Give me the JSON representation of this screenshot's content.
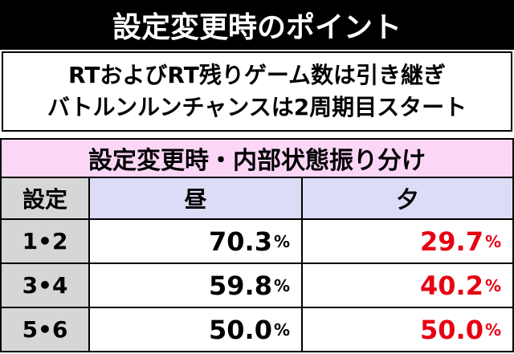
{
  "header": {
    "title": "設定変更時のポイント"
  },
  "notes": [
    "RTおよびRT残りゲーム数は引き継ぎ",
    "バトルンルンチャンスは2周期目スタート"
  ],
  "table": {
    "title": "設定変更時・内部状態振り分け",
    "columns": [
      "設定",
      "昼",
      "夕"
    ],
    "unit": "%",
    "rows": [
      [
        "1•2",
        "70.3",
        "29.7"
      ],
      [
        "3•4",
        "59.8",
        "40.2"
      ],
      [
        "5•6",
        "50.0",
        "50.0"
      ]
    ]
  }
}
